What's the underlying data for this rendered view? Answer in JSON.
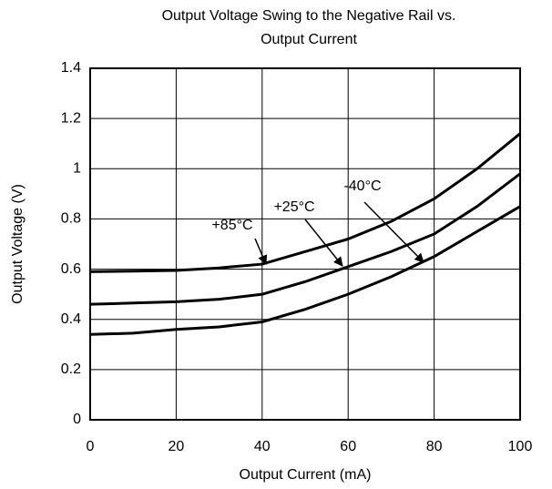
{
  "chart_data": {
    "type": "line",
    "title": [
      "Output Voltage Swing to the Negative Rail vs.",
      "Output Current"
    ],
    "x_label": "Output Current (mA)",
    "y_label": "Output Voltage (V)",
    "x": [
      0,
      10,
      20,
      30,
      40,
      50,
      60,
      70,
      80,
      90,
      100
    ],
    "series": [
      {
        "name": "+85°C",
        "color": "#000000",
        "values": [
          0.59,
          0.592,
          0.595,
          0.605,
          0.62,
          0.67,
          0.72,
          0.79,
          0.88,
          1.0,
          1.14
        ]
      },
      {
        "name": "+25°C",
        "color": "#000000",
        "values": [
          0.46,
          0.465,
          0.47,
          0.48,
          0.5,
          0.55,
          0.61,
          0.67,
          0.74,
          0.85,
          0.98
        ]
      },
      {
        "name": "-40°C",
        "color": "#000000",
        "values": [
          0.34,
          0.345,
          0.36,
          0.37,
          0.39,
          0.44,
          0.5,
          0.57,
          0.65,
          0.75,
          0.85
        ]
      }
    ],
    "xlim": [
      0,
      100
    ],
    "xticks": [
      0,
      20,
      40,
      60,
      80,
      100
    ],
    "ylim": [
      0,
      1.4
    ],
    "yticks": [
      0,
      0.2,
      0.4,
      0.6,
      0.8,
      1,
      1.2,
      1.4
    ],
    "grid": true
  }
}
